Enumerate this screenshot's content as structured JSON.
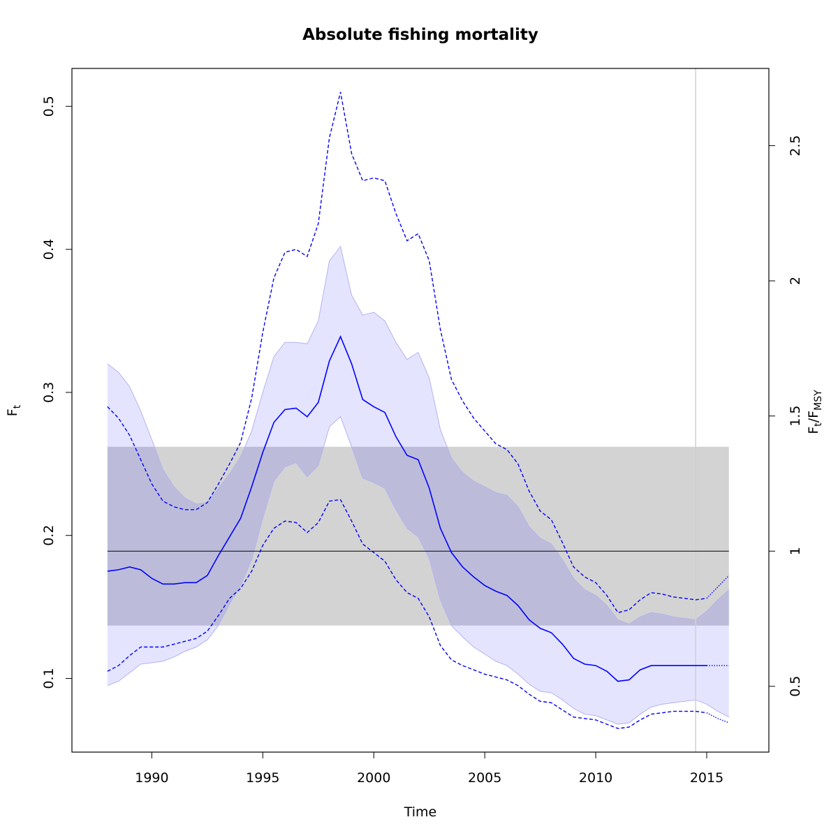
{
  "chart_data": {
    "type": "line",
    "title": "Absolute fishing mortality",
    "xlabel": "Time",
    "ylabel": "F",
    "ylabel_sub": "t",
    "ylabel_right": {
      "num": "F",
      "num_sub": "t",
      "slash": "/",
      "den": "F",
      "den_sub": "MSY"
    },
    "xlim": [
      1986.4,
      2017.8
    ],
    "ylim": [
      0.0485,
      0.5265
    ],
    "x_ticks": [
      1990,
      1995,
      2000,
      2005,
      2010,
      2015
    ],
    "y_ticks": [
      0.1,
      0.2,
      0.3,
      0.4,
      0.5
    ],
    "y_ticks_right": [
      0.5,
      1,
      1.5,
      2,
      2.5
    ],
    "right_axis_scale": 0.189,
    "grid": false,
    "fmsy": 0.189,
    "fmsy_band": [
      0.137,
      0.262
    ],
    "band_x": [
      1988,
      2016
    ],
    "last_obs_year": 2014.5,
    "colors": {
      "estimate": "#0000ff",
      "ci_fill": "#e4e4ff",
      "ci_border": "#b3b3ef",
      "fmsy_band": "#d3d3d3",
      "overlap": "#bcbcda",
      "vline": "#d0d0d0"
    },
    "series": [
      {
        "role": "estimate",
        "x": [
          1988,
          1988.5,
          1989,
          1989.5,
          1990,
          1990.5,
          1991,
          1991.5,
          1992,
          1992.5,
          1993,
          1993.5,
          1994,
          1994.5,
          1995,
          1995.5,
          1996,
          1996.5,
          1997,
          1997.5,
          1998,
          1998.5,
          1999,
          1999.5,
          2000,
          2000.5,
          2001,
          2001.5,
          2002,
          2002.5,
          2003,
          2003.5,
          2004,
          2004.5,
          2005,
          2005.5,
          2006,
          2006.5,
          2007,
          2007.5,
          2008,
          2008.5,
          2009,
          2009.5,
          2010,
          2010.5,
          2011,
          2011.5,
          2012,
          2012.5,
          2013,
          2013.5,
          2014,
          2014.5,
          2015
        ],
        "y": [
          0.175,
          0.176,
          0.178,
          0.176,
          0.17,
          0.166,
          0.166,
          0.167,
          0.167,
          0.172,
          0.186,
          0.199,
          0.212,
          0.234,
          0.258,
          0.279,
          0.288,
          0.289,
          0.283,
          0.293,
          0.322,
          0.339,
          0.32,
          0.295,
          0.29,
          0.286,
          0.269,
          0.256,
          0.253,
          0.233,
          0.205,
          0.188,
          0.178,
          0.171,
          0.165,
          0.161,
          0.158,
          0.151,
          0.141,
          0.135,
          0.132,
          0.124,
          0.114,
          0.11,
          0.109,
          0.105,
          0.098,
          0.099,
          0.106,
          0.109,
          0.109,
          0.109,
          0.109,
          0.109,
          0.109
        ]
      },
      {
        "role": "estimate-projection",
        "x": [
          2015,
          2016
        ],
        "y": [
          0.109,
          0.109
        ]
      },
      {
        "role": "ci-upper",
        "x": [
          1988,
          1988.5,
          1989,
          1989.5,
          1990,
          1990.5,
          1991,
          1991.5,
          1992,
          1992.5,
          1993,
          1993.5,
          1994,
          1994.5,
          1995,
          1995.5,
          1996,
          1996.5,
          1997,
          1997.5,
          1998,
          1998.5,
          1999,
          1999.5,
          2000,
          2000.5,
          2001,
          2001.5,
          2002,
          2002.5,
          2003,
          2003.5,
          2004,
          2004.5,
          2005,
          2005.5,
          2006,
          2006.5,
          2007,
          2007.5,
          2008,
          2008.5,
          2009,
          2009.5,
          2010,
          2010.5,
          2011,
          2011.5,
          2012,
          2012.5,
          2013,
          2013.5,
          2014,
          2014.5,
          2015,
          2015.5,
          2016
        ],
        "y": [
          0.32,
          0.314,
          0.304,
          0.287,
          0.267,
          0.246,
          0.234,
          0.226,
          0.222,
          0.223,
          0.233,
          0.243,
          0.255,
          0.273,
          0.3,
          0.325,
          0.335,
          0.335,
          0.334,
          0.35,
          0.392,
          0.402,
          0.368,
          0.354,
          0.356,
          0.35,
          0.335,
          0.323,
          0.328,
          0.31,
          0.274,
          0.254,
          0.244,
          0.238,
          0.234,
          0.23,
          0.228,
          0.22,
          0.206,
          0.198,
          0.194,
          0.183,
          0.17,
          0.162,
          0.158,
          0.151,
          0.141,
          0.138,
          0.143,
          0.146,
          0.145,
          0.143,
          0.142,
          0.141,
          0.147,
          0.155,
          0.162
        ]
      },
      {
        "role": "ci-lower",
        "x": [
          1988,
          1988.5,
          1989,
          1989.5,
          1990,
          1990.5,
          1991,
          1991.5,
          1992,
          1992.5,
          1993,
          1993.5,
          1994,
          1994.5,
          1995,
          1995.5,
          1996,
          1996.5,
          1997,
          1997.5,
          1998,
          1998.5,
          1999,
          1999.5,
          2000,
          2000.5,
          2001,
          2001.5,
          2002,
          2002.5,
          2003,
          2003.5,
          2004,
          2004.5,
          2005,
          2005.5,
          2006,
          2006.5,
          2007,
          2007.5,
          2008,
          2008.5,
          2009,
          2009.5,
          2010,
          2010.5,
          2011,
          2011.5,
          2012,
          2012.5,
          2013,
          2013.5,
          2014,
          2014.5,
          2015,
          2015.5,
          2016
        ],
        "y": [
          0.095,
          0.098,
          0.104,
          0.11,
          0.111,
          0.112,
          0.115,
          0.119,
          0.122,
          0.127,
          0.137,
          0.152,
          0.165,
          0.183,
          0.212,
          0.238,
          0.248,
          0.251,
          0.241,
          0.249,
          0.276,
          0.283,
          0.262,
          0.24,
          0.237,
          0.233,
          0.218,
          0.205,
          0.199,
          0.184,
          0.155,
          0.137,
          0.129,
          0.122,
          0.117,
          0.112,
          0.109,
          0.103,
          0.096,
          0.091,
          0.09,
          0.085,
          0.079,
          0.075,
          0.074,
          0.071,
          0.068,
          0.069,
          0.075,
          0.08,
          0.082,
          0.083,
          0.084,
          0.085,
          0.082,
          0.077,
          0.073
        ]
      },
      {
        "role": "pred-upper",
        "x": [
          1988,
          1988.5,
          1989,
          1989.5,
          1990,
          1990.5,
          1991,
          1991.5,
          1992,
          1992.5,
          1993,
          1993.5,
          1994,
          1994.5,
          1995,
          1995.5,
          1996,
          1996.5,
          1997,
          1997.5,
          1998,
          1998.5,
          1999,
          1999.5,
          2000,
          2000.5,
          2001,
          2001.5,
          2002,
          2002.5,
          2003,
          2003.5,
          2004,
          2004.5,
          2005,
          2005.5,
          2006,
          2006.5,
          2007,
          2007.5,
          2008,
          2008.5,
          2009,
          2009.5,
          2010,
          2010.5,
          2011,
          2011.5,
          2012,
          2012.5,
          2013,
          2013.5,
          2014,
          2014.5,
          2015
        ],
        "y": [
          0.29,
          0.282,
          0.27,
          0.253,
          0.236,
          0.224,
          0.22,
          0.218,
          0.218,
          0.223,
          0.236,
          0.25,
          0.265,
          0.296,
          0.342,
          0.38,
          0.398,
          0.4,
          0.395,
          0.418,
          0.478,
          0.51,
          0.467,
          0.448,
          0.45,
          0.448,
          0.425,
          0.406,
          0.411,
          0.392,
          0.344,
          0.309,
          0.294,
          0.282,
          0.273,
          0.264,
          0.26,
          0.25,
          0.231,
          0.217,
          0.211,
          0.195,
          0.178,
          0.171,
          0.167,
          0.158,
          0.146,
          0.148,
          0.155,
          0.16,
          0.159,
          0.157,
          0.156,
          0.155,
          0.156
        ]
      },
      {
        "role": "pred-upper-projection",
        "x": [
          2015,
          2015.5,
          2016
        ],
        "y": [
          0.156,
          0.164,
          0.172
        ]
      },
      {
        "role": "pred-lower",
        "x": [
          1988,
          1988.5,
          1989,
          1989.5,
          1990,
          1990.5,
          1991,
          1991.5,
          1992,
          1992.5,
          1993,
          1993.5,
          1994,
          1994.5,
          1995,
          1995.5,
          1996,
          1996.5,
          1997,
          1997.5,
          1998,
          1998.5,
          1999,
          1999.5,
          2000,
          2000.5,
          2001,
          2001.5,
          2002,
          2002.5,
          2003,
          2003.5,
          2004,
          2004.5,
          2005,
          2005.5,
          2006,
          2006.5,
          2007,
          2007.5,
          2008,
          2008.5,
          2009,
          2009.5,
          2010,
          2010.5,
          2011,
          2011.5,
          2012,
          2012.5,
          2013,
          2013.5,
          2014,
          2014.5,
          2015
        ],
        "y": [
          0.105,
          0.109,
          0.116,
          0.122,
          0.122,
          0.122,
          0.124,
          0.126,
          0.128,
          0.133,
          0.144,
          0.156,
          0.163,
          0.175,
          0.193,
          0.205,
          0.21,
          0.209,
          0.202,
          0.209,
          0.224,
          0.225,
          0.21,
          0.194,
          0.188,
          0.182,
          0.169,
          0.16,
          0.156,
          0.143,
          0.123,
          0.113,
          0.109,
          0.106,
          0.103,
          0.101,
          0.099,
          0.095,
          0.089,
          0.084,
          0.083,
          0.078,
          0.073,
          0.072,
          0.071,
          0.068,
          0.065,
          0.066,
          0.071,
          0.075,
          0.076,
          0.077,
          0.077,
          0.077,
          0.076
        ]
      },
      {
        "role": "pred-lower-projection",
        "x": [
          2015,
          2015.5,
          2016
        ],
        "y": [
          0.076,
          0.072,
          0.069
        ]
      }
    ]
  }
}
